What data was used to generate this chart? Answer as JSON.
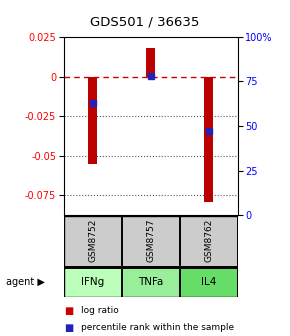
{
  "title": "GDS501 / 36635",
  "samples": [
    "GSM8752",
    "GSM8757",
    "GSM8762"
  ],
  "agents": [
    "IFNg",
    "TNFa",
    "IL4"
  ],
  "log_ratios": [
    -0.055,
    0.018,
    -0.079
  ],
  "percentile_ranks": [
    63,
    78,
    47
  ],
  "ylim_left": [
    -0.0875,
    0.025
  ],
  "ylim_right": [
    0,
    100
  ],
  "yticks_left": [
    0.025,
    0,
    -0.025,
    -0.05,
    -0.075
  ],
  "yticks_right": [
    100,
    75,
    50,
    25,
    0
  ],
  "bar_color": "#bb0000",
  "dot_color": "#2222bb",
  "zero_line_color": "#cc0000",
  "dotted_line_color": "#555555",
  "agent_colors": [
    "#bbffbb",
    "#99ee99",
    "#66dd66"
  ],
  "sample_box_color": "#cccccc",
  "legend_bar_color": "#cc0000",
  "legend_dot_color": "#2222bb",
  "bar_width": 0.15
}
